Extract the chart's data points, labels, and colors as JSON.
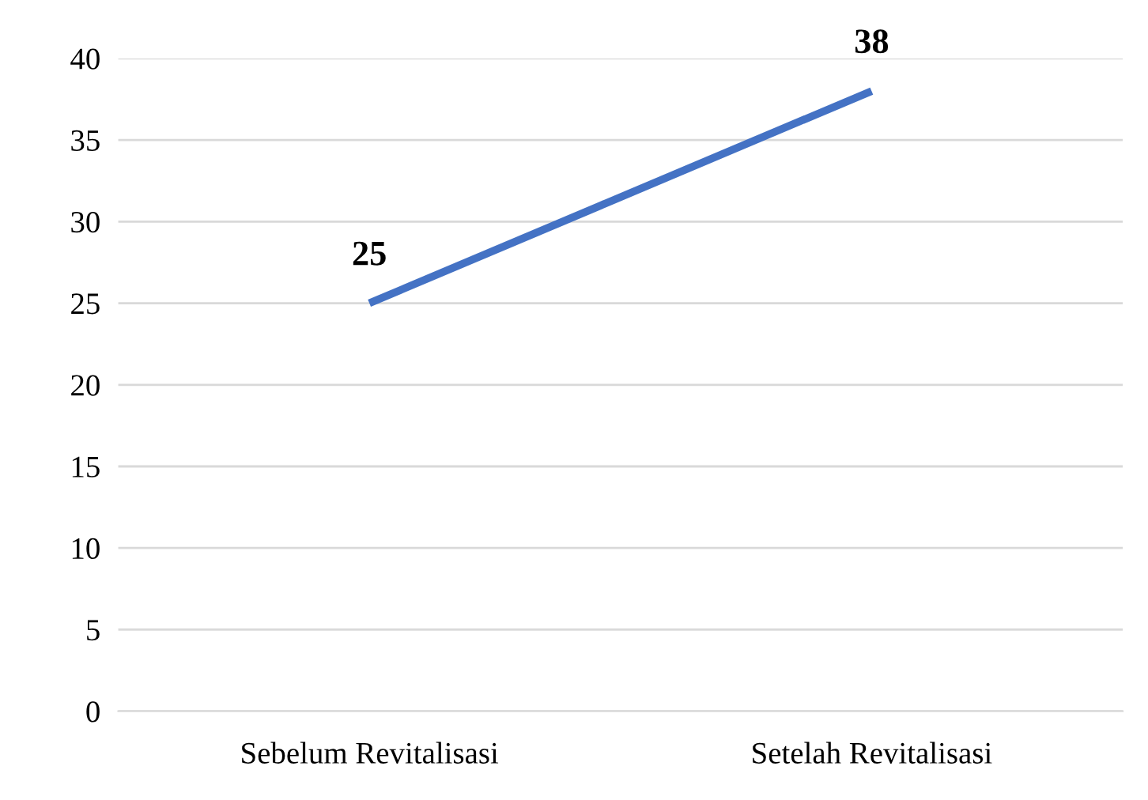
{
  "chart_data": {
    "type": "line",
    "categories": [
      "Sebelum Revitalisasi",
      "Setelah Revitalisasi"
    ],
    "series": [
      {
        "color": "#4472c4",
        "values": [
          25,
          38
        ]
      }
    ],
    "ylim": [
      0,
      40
    ],
    "yticks": [
      0,
      5,
      10,
      15,
      20,
      25,
      30,
      35,
      40
    ],
    "grid": "y",
    "data_labels": true,
    "marker": "none",
    "line_style": "solid"
  }
}
